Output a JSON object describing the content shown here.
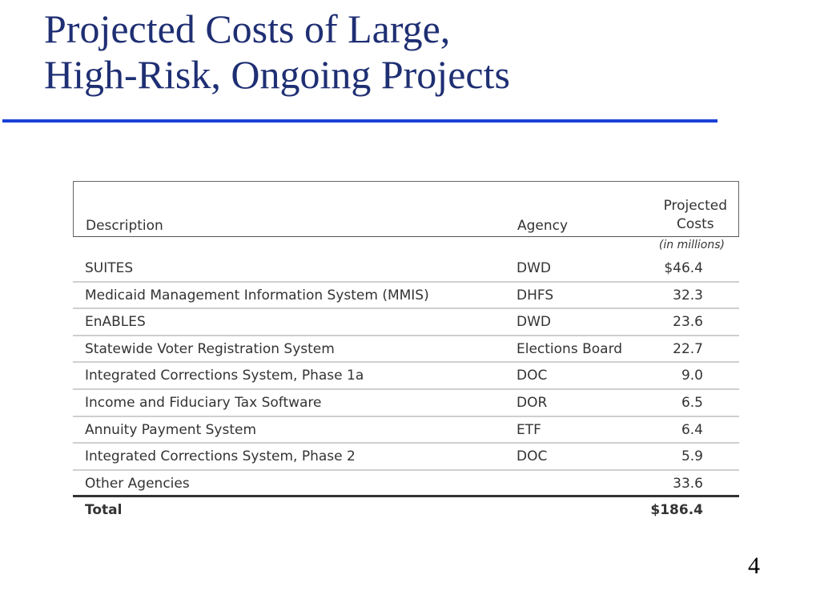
{
  "slide": {
    "title_line1": "Projected Costs of Large,",
    "title_line2": "High-Risk, Ongoing Projects",
    "page_number": "4"
  },
  "table": {
    "headers": {
      "description": "Description",
      "agency": "Agency",
      "costs_line1": "Projected",
      "costs_line2": "Costs",
      "units": "(in millions)"
    },
    "rows": [
      {
        "description": "SUITES",
        "agency": "DWD",
        "cost": "$46.4"
      },
      {
        "description": "Medicaid Management Information System (MMIS)",
        "agency": "DHFS",
        "cost": "32.3"
      },
      {
        "description": "EnABLES",
        "agency": "DWD",
        "cost": "23.6"
      },
      {
        "description": "Statewide Voter Registration System",
        "agency": "Elections Board",
        "cost": "22.7"
      },
      {
        "description": "Integrated Corrections System, Phase 1a",
        "agency": "DOC",
        "cost": "9.0"
      },
      {
        "description": "Income and Fiduciary Tax Software",
        "agency": "DOR",
        "cost": "6.5"
      },
      {
        "description": "Annuity Payment System",
        "agency": "ETF",
        "cost": "6.4"
      },
      {
        "description": "Integrated Corrections System, Phase 2",
        "agency": "DOC",
        "cost": "5.9"
      },
      {
        "description": "Other Agencies",
        "agency": "",
        "cost": "33.6"
      }
    ],
    "total": {
      "label": "Total",
      "cost": "$186.4"
    }
  }
}
